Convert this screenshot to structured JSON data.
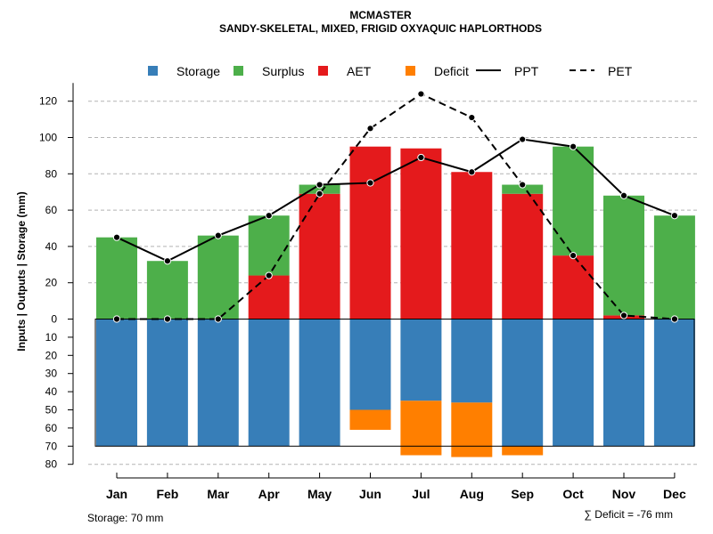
{
  "chart_data": {
    "type": "bar",
    "title": "MCMASTER",
    "subtitle": "SANDY-SKELETAL, MIXED, FRIGID OXYAQUIC HAPLORTHODS",
    "ylabel": "Inputs | Outputs | Storage    (mm)",
    "categories": [
      "Jan",
      "Feb",
      "Mar",
      "Apr",
      "May",
      "Jun",
      "Jul",
      "Aug",
      "Sep",
      "Oct",
      "Nov",
      "Dec"
    ],
    "ylim": [
      -80,
      130
    ],
    "yticks_upper": [
      "0",
      "20",
      "40",
      "60",
      "80",
      "100",
      "120"
    ],
    "yticks_lower": [
      "10",
      "20",
      "30",
      "40",
      "50",
      "60",
      "70",
      "80"
    ],
    "series": [
      {
        "name": "Storage",
        "color": "#377EB8",
        "values": [
          70,
          70,
          70,
          70,
          70,
          50,
          45,
          46,
          70,
          70,
          70,
          70
        ]
      },
      {
        "name": "Surplus",
        "color": "#4DAF4A",
        "values": [
          45,
          32,
          46,
          33,
          5,
          0,
          0,
          0,
          5,
          60,
          66,
          57
        ]
      },
      {
        "name": "AET",
        "color": "#E41A1C",
        "values": [
          0,
          0,
          0,
          24,
          69,
          95,
          94,
          81,
          69,
          35,
          2,
          0
        ]
      },
      {
        "name": "Deficit",
        "color": "#FF7F00",
        "values": [
          0,
          0,
          0,
          0,
          0,
          -11,
          -30,
          -30,
          -5,
          0,
          0,
          0
        ]
      },
      {
        "name": "PPT",
        "style": "solid",
        "color": "#000000",
        "values": [
          45,
          32,
          46,
          57,
          74,
          75,
          89,
          81,
          99,
          95,
          68,
          57
        ]
      },
      {
        "name": "PET",
        "style": "dashed",
        "color": "#000000",
        "values": [
          0,
          0,
          0,
          24,
          69,
          105,
          124,
          111,
          74,
          35,
          2,
          0
        ]
      }
    ],
    "legend": [
      {
        "label": "Storage",
        "kind": "box",
        "color": "#377EB8"
      },
      {
        "label": "Surplus",
        "kind": "box",
        "color": "#4DAF4A"
      },
      {
        "label": "AET",
        "kind": "box",
        "color": "#E41A1C"
      },
      {
        "label": "Deficit",
        "kind": "box",
        "color": "#FF7F00"
      },
      {
        "label": "PPT",
        "kind": "line",
        "dash": false
      },
      {
        "label": "PET",
        "kind": "line",
        "dash": true
      }
    ],
    "storage_capacity": 70,
    "grid": true
  },
  "footer": {
    "storage": "Storage: 70 mm",
    "deficit": "∑ Deficit = -76 mm"
  }
}
